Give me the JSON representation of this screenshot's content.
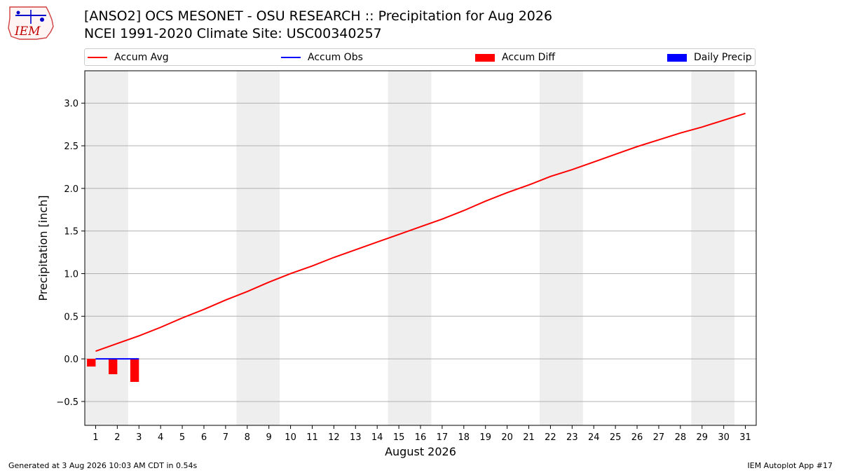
{
  "logo_text": "IEM",
  "title_line1": "[ANSO2] OCS MESONET - OSU RESEARCH :: Precipitation for Aug 2026",
  "title_line2": "NCEI 1991-2020 Climate Site: USC00340257",
  "legend": [
    {
      "label": "Accum Avg",
      "kind": "line",
      "color": "#ff0000"
    },
    {
      "label": "Accum Obs",
      "kind": "line",
      "color": "#0000ff"
    },
    {
      "label": "Accum Diff",
      "kind": "patch",
      "color": "#ff0000"
    },
    {
      "label": "Daily Precip",
      "kind": "patch",
      "color": "#0000ff"
    }
  ],
  "footer_left": "Generated at 3 Aug 2026 10:03 AM CDT in 0.54s",
  "footer_right": "IEM Autoplot App #17",
  "chart_data": {
    "type": "line",
    "xlabel": "August 2026",
    "ylabel": "Precipitation [inch]",
    "xlim": [
      0.5,
      31.5
    ],
    "ylim": [
      -0.78,
      3.38
    ],
    "x_ticks": [
      1,
      2,
      3,
      4,
      5,
      6,
      7,
      8,
      9,
      10,
      11,
      12,
      13,
      14,
      15,
      16,
      17,
      18,
      19,
      20,
      21,
      22,
      23,
      24,
      25,
      26,
      27,
      28,
      29,
      30,
      31
    ],
    "y_ticks": [
      -0.5,
      0.0,
      0.5,
      1.0,
      1.5,
      2.0,
      2.5,
      3.0
    ],
    "y_tick_labels": [
      "−0.5",
      "0.0",
      "0.5",
      "1.0",
      "1.5",
      "2.0",
      "2.5",
      "3.0"
    ],
    "grid": "horizontal",
    "weekend_shading": [
      [
        0.5,
        2.5
      ],
      [
        7.5,
        9.5
      ],
      [
        14.5,
        16.5
      ],
      [
        21.5,
        23.5
      ],
      [
        28.5,
        30.5
      ]
    ],
    "accum_avg": {
      "name": "Accum Avg",
      "color": "#ff0000",
      "x": [
        1,
        2,
        3,
        4,
        5,
        6,
        7,
        8,
        9,
        10,
        11,
        12,
        13,
        14,
        15,
        16,
        17,
        18,
        19,
        20,
        21,
        22,
        23,
        24,
        25,
        26,
        27,
        28,
        29,
        30,
        31
      ],
      "values": [
        0.09,
        0.18,
        0.27,
        0.37,
        0.48,
        0.58,
        0.69,
        0.79,
        0.9,
        1.0,
        1.09,
        1.19,
        1.28,
        1.37,
        1.46,
        1.55,
        1.64,
        1.74,
        1.85,
        1.95,
        2.04,
        2.14,
        2.22,
        2.31,
        2.4,
        2.49,
        2.57,
        2.65,
        2.72,
        2.8,
        2.88
      ]
    },
    "accum_obs": {
      "name": "Accum Obs",
      "color": "#0000ff",
      "x": [
        1,
        2,
        3
      ],
      "values": [
        0.0,
        0.0,
        0.0
      ]
    },
    "accum_diff": {
      "name": "Accum Diff",
      "color": "#ff0000",
      "x": [
        1,
        2,
        3
      ],
      "values": [
        -0.09,
        -0.18,
        -0.27
      ]
    },
    "daily_precip": {
      "name": "Daily Precip",
      "color": "#0000ff",
      "x": [
        1,
        2,
        3
      ],
      "values": [
        0.0,
        0.0,
        0.0
      ]
    }
  }
}
